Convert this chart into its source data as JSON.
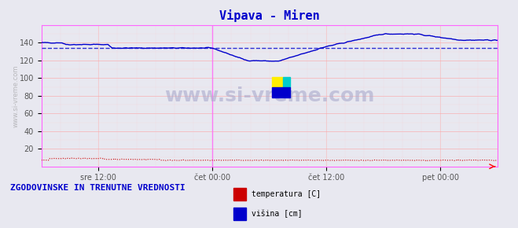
{
  "title": "Vipava - Miren",
  "title_color": "#0000cc",
  "bg_color": "#e8e8f0",
  "plot_bg_color": "#e8e8f0",
  "xlabel_ticks": [
    "sre 12:00",
    "čet 00:00",
    "čet 12:00",
    "pet 00:00"
  ],
  "xlabel_tick_positions": [
    0.125,
    0.375,
    0.625,
    0.875
  ],
  "ylim": [
    0,
    160
  ],
  "yticks": [
    20,
    40,
    60,
    80,
    100,
    120,
    140
  ],
  "grid_color_major": "#ff9999",
  "grid_color_minor": "#ffcccc",
  "watermark": "www.si-vreme.com",
  "watermark_color": "#aaaacc",
  "legend_label1": "temperatura [C]",
  "legend_label2": "višina [cm]",
  "legend_color1": "#cc0000",
  "legend_color2": "#0000cc",
  "bottom_text": "ZGODOVINSKE IN TRENUTNE VREDNOSTI",
  "bottom_text_color": "#0000cc",
  "ylabel_color": "#555555",
  "tick_color": "#555555",
  "border_color": "#aaaaaa",
  "pink_vline_x": 0.375,
  "pink_vline_color": "#ff66ff",
  "pink_border_color": "#ff66ff",
  "avg_line_value": 134,
  "avg_line_color": "#0000cc",
  "temp_value": 7,
  "temp_color": "#cc0000"
}
